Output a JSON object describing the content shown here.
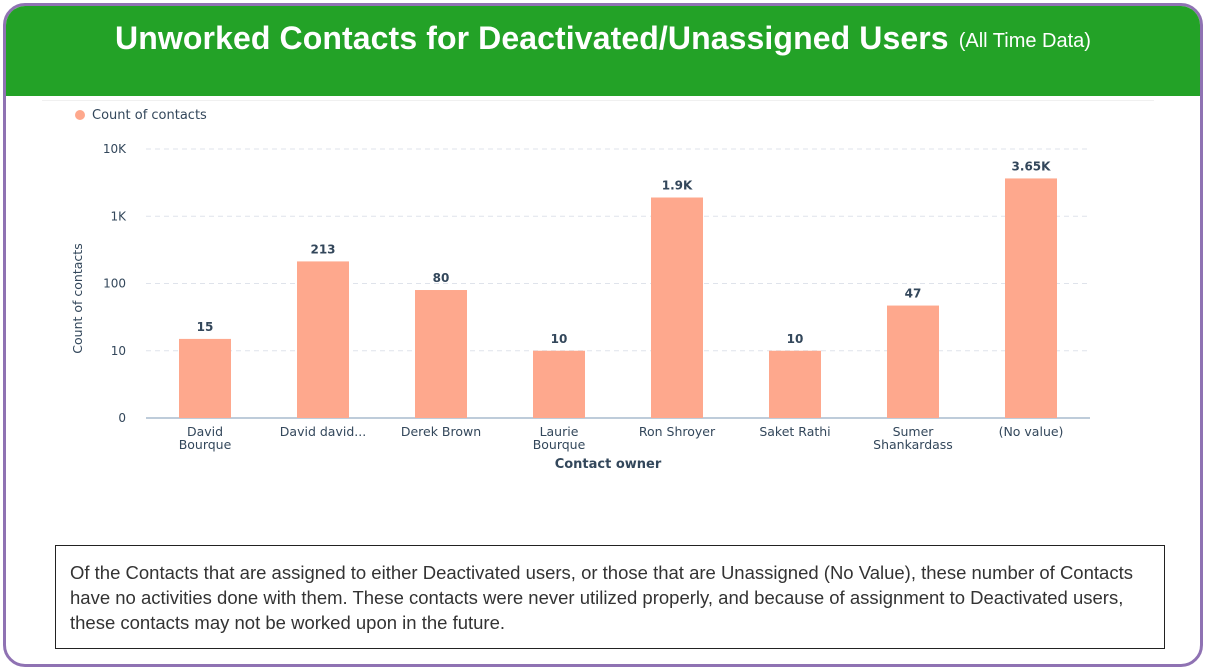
{
  "header": {
    "title": "Unworked Contacts for Deactivated/Unassigned Users",
    "subtitle": "(All Time Data)"
  },
  "colors": {
    "header_bg": "#23a227",
    "frame_border": "#8f72b3",
    "bar": "#fea88d",
    "grid": "#dfe3eb",
    "axis": "#33475b"
  },
  "chart_data": {
    "type": "bar",
    "scale": "log",
    "categories": [
      [
        "David",
        "Bourque"
      ],
      [
        "David david..."
      ],
      [
        "Derek Brown"
      ],
      [
        "Laurie",
        "Bourque"
      ],
      [
        "Ron Shroyer"
      ],
      [
        "Saket Rathi"
      ],
      [
        "Sumer",
        "Shankardass"
      ],
      [
        "(No value)"
      ]
    ],
    "series": [
      {
        "name": "Count of contacts",
        "values": [
          15,
          213,
          80,
          10,
          1900,
          10,
          47,
          3650
        ],
        "labels": [
          "15",
          "213",
          "80",
          "10",
          "1.9K",
          "10",
          "47",
          "3.65K"
        ]
      }
    ],
    "yticks": [
      {
        "value": 1,
        "label": "0"
      },
      {
        "value": 10,
        "label": "10"
      },
      {
        "value": 100,
        "label": "100"
      },
      {
        "value": 1000,
        "label": "1K"
      },
      {
        "value": 10000,
        "label": "10K"
      }
    ],
    "ylim": [
      1,
      10000
    ],
    "xlabel": "Contact owner",
    "ylabel": "Count of contacts",
    "legend": "top-left",
    "grid": true
  },
  "note": {
    "text": "Of the Contacts that are assigned to either Deactivated users, or those that are Unassigned (No Value), these number of Contacts have no activities done with them. These contacts were never utilized properly, and because of assignment to Deactivated users, these contacts may not be worked upon in the future."
  }
}
